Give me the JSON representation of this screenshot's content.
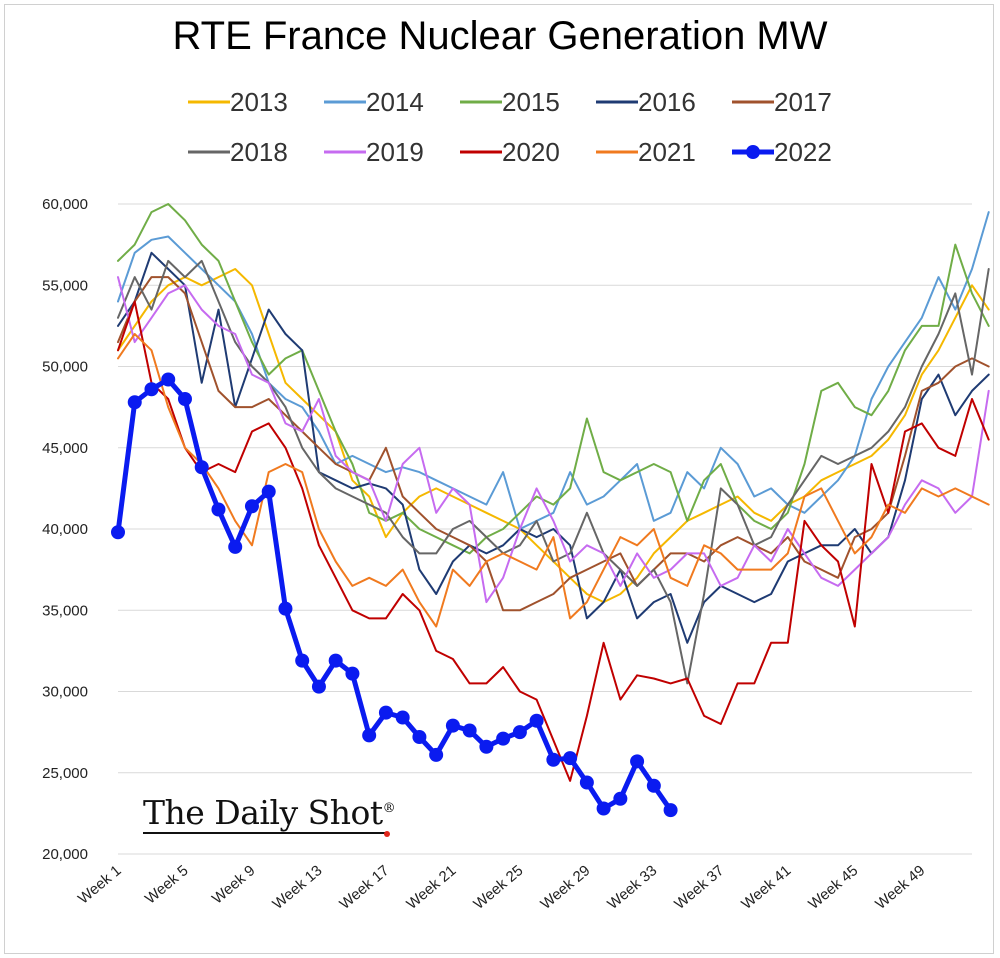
{
  "chart_data": {
    "type": "line",
    "title": "RTE France Nuclear Generation MW",
    "ylim": [
      20000,
      60000
    ],
    "y_ticks": [
      "20,000",
      "25,000",
      "30,000",
      "35,000",
      "40,000",
      "45,000",
      "50,000",
      "55,000",
      "60,000"
    ],
    "y_tick_values": [
      20000,
      25000,
      30000,
      35000,
      40000,
      45000,
      50000,
      55000,
      60000
    ],
    "x_labels": [
      "Week 1",
      "Week 5",
      "Week 9",
      "Week 13",
      "Week 17",
      "Week 21",
      "Week 25",
      "Week 29",
      "Week 33",
      "Week 37",
      "Week 41",
      "Week 45",
      "Week 49"
    ],
    "x_label_weeks": [
      1,
      5,
      9,
      13,
      17,
      21,
      25,
      29,
      33,
      37,
      41,
      45,
      49
    ],
    "grid": "horizontal",
    "legend_position": "top",
    "series": [
      {
        "name": "2013",
        "color": "#F5B800",
        "width": 2,
        "values": [
          51000,
          52500,
          54000,
          55000,
          55500,
          55000,
          55500,
          56000,
          55000,
          52000,
          49000,
          48000,
          47000,
          46000,
          43000,
          42000,
          39500,
          41000,
          42000,
          42500,
          42000,
          41500,
          41000,
          40500,
          40000,
          39000,
          38000,
          37000,
          36000,
          35500,
          36000,
          37000,
          38500,
          39500,
          40500,
          41000,
          41500,
          42000,
          41000,
          40500,
          41500,
          42000,
          43000,
          43500,
          44000,
          44500,
          45500,
          47000,
          49500,
          51000,
          53000,
          55000,
          53500
        ]
      },
      {
        "name": "2014",
        "color": "#5B9BD5",
        "width": 2,
        "values": [
          54000,
          57000,
          57800,
          58000,
          57000,
          56000,
          55000,
          54000,
          52000,
          49000,
          48000,
          47500,
          46000,
          44000,
          44500,
          44000,
          43500,
          43800,
          43500,
          43000,
          42500,
          42000,
          41500,
          43500,
          40000,
          40500,
          41000,
          43500,
          41500,
          42000,
          43000,
          44000,
          40500,
          41000,
          43500,
          42500,
          45000,
          44000,
          42000,
          42500,
          41500,
          41000,
          42000,
          43000,
          44500,
          48000,
          50000,
          51500,
          53000,
          55500,
          53500,
          56000,
          59500
        ]
      },
      {
        "name": "2015",
        "color": "#70AD47",
        "width": 2,
        "values": [
          56500,
          57500,
          59500,
          60000,
          59000,
          57500,
          56500,
          54000,
          51500,
          49500,
          50500,
          51000,
          48500,
          46000,
          44000,
          41000,
          40500,
          41000,
          40000,
          39500,
          39000,
          38500,
          39500,
          40000,
          41000,
          42000,
          41500,
          42500,
          46800,
          43500,
          43000,
          43500,
          44000,
          43500,
          40500,
          43000,
          44000,
          41500,
          40500,
          40000,
          41000,
          44000,
          48500,
          49000,
          47500,
          47000,
          48500,
          51000,
          52500,
          52500,
          57500,
          54500,
          52500
        ]
      },
      {
        "name": "2016",
        "color": "#1F3B73",
        "width": 2,
        "values": [
          52500,
          54000,
          57000,
          56000,
          55000,
          49000,
          53500,
          47500,
          50500,
          53500,
          52000,
          51000,
          43500,
          43000,
          42500,
          42800,
          42500,
          41500,
          37500,
          36000,
          38000,
          39000,
          38500,
          39000,
          40000,
          39500,
          40000,
          39000,
          34500,
          35500,
          37500,
          34500,
          35500,
          36000,
          33000,
          35500,
          36500,
          36000,
          35500,
          36000,
          38000,
          38500,
          39000,
          39000,
          40000,
          38500,
          39500,
          43000,
          48000,
          49500,
          47000,
          48500,
          49500
        ]
      },
      {
        "name": "2017",
        "color": "#A0522D",
        "width": 2,
        "values": [
          51500,
          54000,
          55500,
          55500,
          54500,
          51500,
          48500,
          47500,
          47500,
          48000,
          47000,
          46000,
          45000,
          44000,
          43500,
          43000,
          45000,
          42000,
          41000,
          40000,
          39500,
          39000,
          38000,
          35000,
          35000,
          35500,
          36000,
          37000,
          37500,
          38000,
          38500,
          36500,
          37500,
          38500,
          38500,
          38000,
          39000,
          39500,
          39000,
          38500,
          39500,
          38000,
          37500,
          37000,
          39500,
          40000,
          41000,
          44500,
          48500,
          49000,
          50000,
          50500,
          50000
        ]
      },
      {
        "name": "2018",
        "color": "#666666",
        "width": 2,
        "values": [
          53000,
          55500,
          53500,
          56500,
          55500,
          56500,
          54000,
          51500,
          50000,
          49000,
          47500,
          45000,
          43500,
          42500,
          42000,
          41500,
          41000,
          39500,
          38500,
          38500,
          40000,
          40500,
          39500,
          38500,
          39000,
          40500,
          38000,
          38500,
          41000,
          38500,
          37500,
          36500,
          37500,
          35500,
          30500,
          36000,
          42500,
          41500,
          39000,
          39500,
          41500,
          43000,
          44500,
          44000,
          44500,
          45000,
          46000,
          47500,
          50000,
          52000,
          54500,
          49500,
          56000
        ]
      },
      {
        "name": "2019",
        "color": "#C66BF0",
        "width": 2,
        "values": [
          55500,
          51500,
          53000,
          54500,
          55000,
          53500,
          52500,
          52000,
          49500,
          49000,
          46500,
          46000,
          48000,
          44500,
          43500,
          43000,
          40500,
          44000,
          45000,
          41000,
          42500,
          41500,
          35500,
          37000,
          40000,
          42500,
          40500,
          38000,
          39000,
          38500,
          36500,
          38500,
          37000,
          37500,
          38500,
          38500,
          36500,
          37000,
          39000,
          38000,
          40000,
          38500,
          37000,
          36500,
          37500,
          38500,
          39500,
          41500,
          43000,
          42500,
          41000,
          42000,
          48500
        ]
      },
      {
        "name": "2020",
        "color": "#C00000",
        "width": 2,
        "values": [
          51000,
          54000,
          49000,
          48000,
          45000,
          43500,
          44000,
          43500,
          46000,
          46500,
          45000,
          42500,
          39000,
          37000,
          35000,
          34500,
          34500,
          36000,
          35000,
          32500,
          32000,
          30500,
          30500,
          31500,
          30000,
          29500,
          27000,
          24500,
          28500,
          33000,
          29500,
          31000,
          30800,
          30500,
          30800,
          28500,
          28000,
          30500,
          30500,
          33000,
          33000,
          40500,
          39000,
          38000,
          34000,
          44000,
          41000,
          46000,
          46500,
          45000,
          44500,
          48000,
          45500
        ]
      },
      {
        "name": "2021",
        "color": "#F07A1F",
        "width": 2,
        "values": [
          50500,
          52000,
          51000,
          47500,
          45000,
          44000,
          42500,
          40500,
          39000,
          43500,
          44000,
          43500,
          40000,
          38000,
          36500,
          37000,
          36500,
          37500,
          35500,
          34000,
          37500,
          36500,
          38000,
          38500,
          38000,
          37500,
          39500,
          34500,
          35500,
          37500,
          39500,
          39000,
          40000,
          37000,
          36500,
          39000,
          38500,
          37500,
          37500,
          37500,
          38500,
          42000,
          42500,
          40500,
          38500,
          39500,
          41500,
          41000,
          42500,
          42000,
          42500,
          42000,
          41500
        ]
      },
      {
        "name": "2022",
        "color": "#0A1BF0",
        "width": 5,
        "markers": true,
        "values": [
          39800,
          47800,
          48600,
          49200,
          48000,
          43800,
          41200,
          38900,
          41400,
          42300,
          35100,
          31900,
          30300,
          31900,
          31100,
          27300,
          28700,
          28400,
          27200,
          26100,
          27900,
          27600,
          26600,
          27100,
          27500,
          28200,
          25800,
          25900,
          24400,
          22800,
          23400,
          25700,
          24200,
          22700
        ]
      }
    ]
  },
  "brand": {
    "name": "The Daily Shot",
    "mark": "®"
  }
}
